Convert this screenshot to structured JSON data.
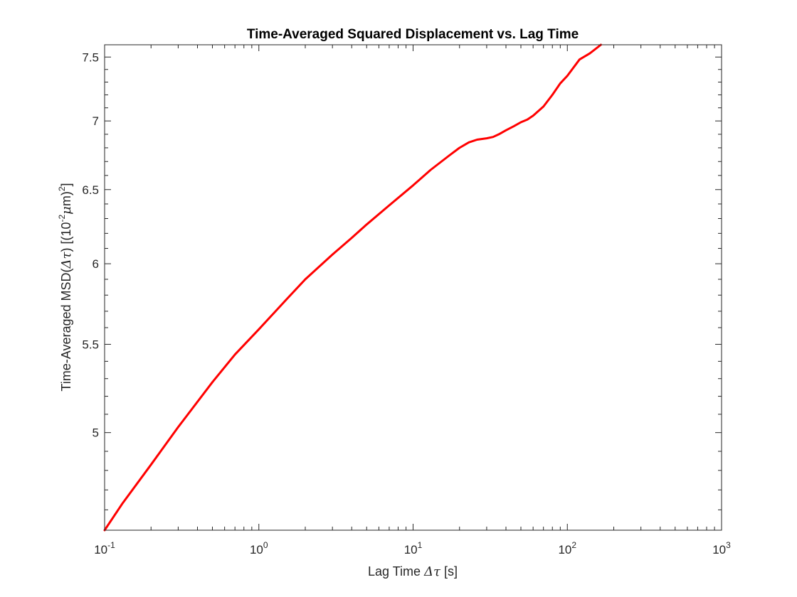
{
  "chart_data": {
    "type": "line",
    "title": "Time-Averaged Squared Displacement vs. Lag Time",
    "xlabel": "Lag Time Δτ [s]",
    "ylabel": "Time-Averaged MSD(Δτ) [(10⁻²μm)²]",
    "xlabel_parts": {
      "main": "Lag Time ",
      "symbol": "Δτ",
      "unit": " [s]"
    },
    "ylabel_parts": {
      "pre": "Time-Averaged MSD(",
      "symbol": "Δτ",
      "mid": ") [(10",
      "exp1": "-2",
      "mu": "μ",
      "post": "m)",
      "exp2": "2",
      "end": "]"
    },
    "x_scale": "log",
    "y_scale": "log",
    "xlim": [
      0.1,
      1000
    ],
    "ylim": [
      4.5,
      7.6
    ],
    "x_ticks": [
      {
        "value": 0.1,
        "base": "10",
        "exp": "-1"
      },
      {
        "value": 1,
        "base": "10",
        "exp": "0"
      },
      {
        "value": 10,
        "base": "10",
        "exp": "1"
      },
      {
        "value": 100,
        "base": "10",
        "exp": "2"
      },
      {
        "value": 1000,
        "base": "10",
        "exp": "3"
      }
    ],
    "y_ticks": [
      {
        "value": 5,
        "label": "5"
      },
      {
        "value": 5.5,
        "label": "5.5"
      },
      {
        "value": 6,
        "label": "6"
      },
      {
        "value": 6.5,
        "label": "6.5"
      },
      {
        "value": 7,
        "label": "7"
      },
      {
        "value": 7.5,
        "label": "7.5"
      }
    ],
    "grid": false,
    "box": true,
    "series": [
      {
        "color": "#ff0000",
        "x": [
          0.1,
          0.13,
          0.2,
          0.3,
          0.5,
          0.7,
          1,
          1.5,
          2,
          3,
          4,
          5,
          7,
          10,
          13,
          17,
          20,
          23,
          26,
          30,
          33,
          36,
          40,
          45,
          50,
          55,
          60,
          70,
          80,
          90,
          100,
          120,
          140,
          165
        ],
        "y": [
          4.5,
          4.63,
          4.83,
          5.03,
          5.28,
          5.44,
          5.59,
          5.77,
          5.9,
          6.06,
          6.17,
          6.26,
          6.39,
          6.53,
          6.64,
          6.74,
          6.8,
          6.84,
          6.86,
          6.87,
          6.88,
          6.9,
          6.93,
          6.96,
          6.99,
          7.01,
          7.04,
          7.11,
          7.2,
          7.29,
          7.35,
          7.48,
          7.53,
          7.6
        ]
      }
    ]
  }
}
